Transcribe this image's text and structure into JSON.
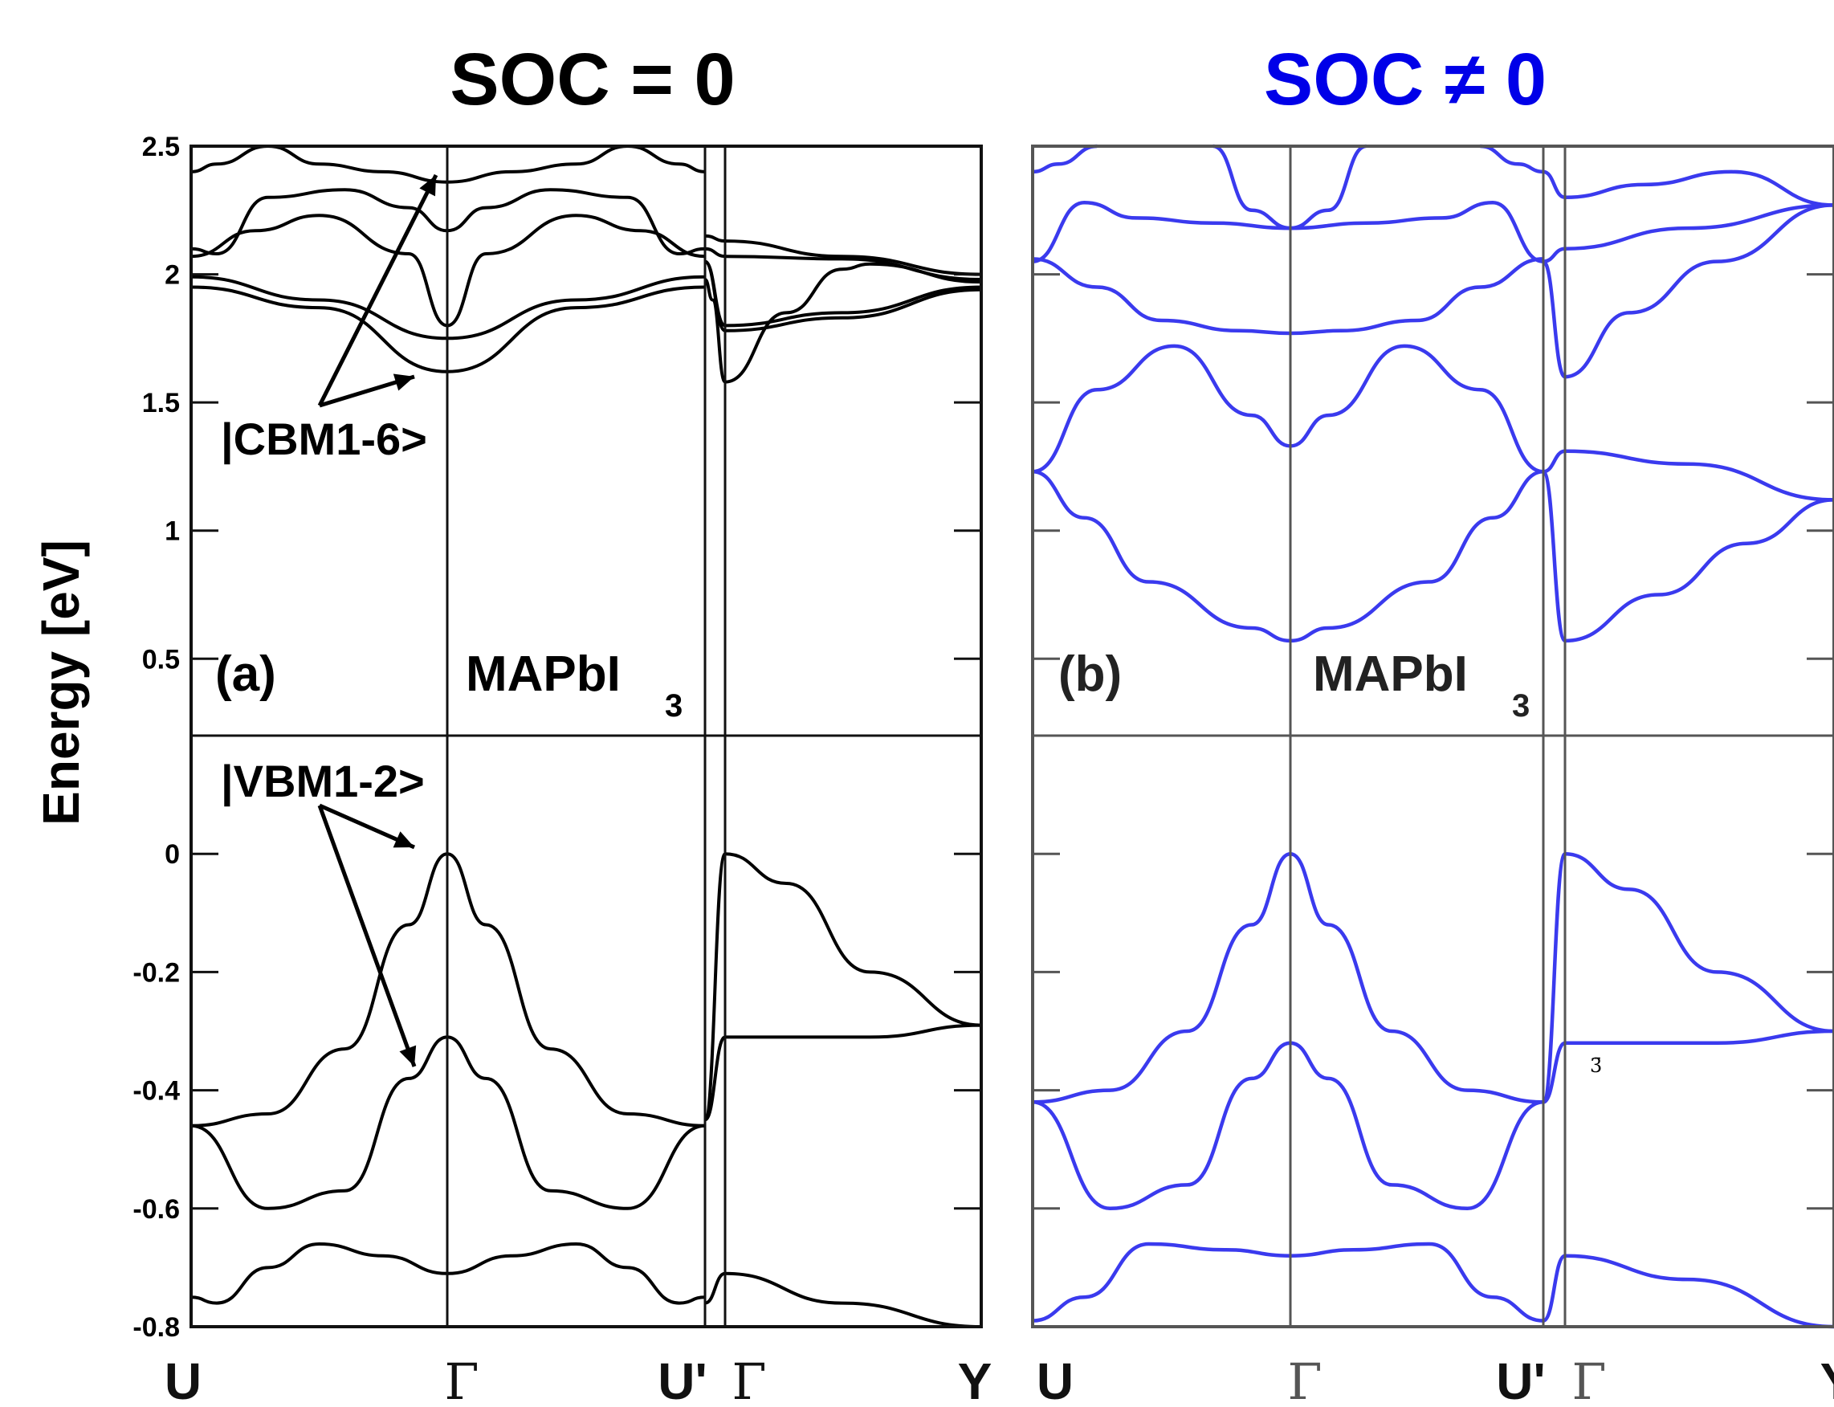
{
  "chart_data": [
    {
      "type": "line",
      "panel_label": "(a)",
      "title": "SOC = 0",
      "title_color": "#000000",
      "compound": "MAPbI",
      "compound_subscript": "3",
      "ylabel": "Energy [eV]",
      "line_color": "#000000",
      "k_points": [
        "U",
        "Γ",
        "U'",
        "Γ",
        "Y"
      ],
      "annotations": [
        "|CBM1-6>",
        "|VBM1-2>"
      ],
      "upper_ylim": [
        0.2,
        2.5
      ],
      "lower_ylim": [
        -0.8,
        0.2
      ],
      "upper_ticks": [
        "2.5",
        "2",
        "1.5",
        "1",
        "0.5"
      ],
      "lower_ticks": [
        "0",
        "-0.2",
        "-0.4",
        "-0.6",
        "-0.8"
      ],
      "bands": [
        {
          "name": "",
          "x": [
            0,
            0.5,
            1,
            1.5,
            2
          ],
          "y": [
            1.95,
            1.87,
            1.62,
            1.87,
            1.95
          ]
        },
        {
          "name": "",
          "x": [
            0,
            0.5,
            1,
            1.5,
            2
          ],
          "y": [
            1.99,
            1.9,
            1.75,
            1.9,
            1.99
          ]
        },
        {
          "name": "",
          "x": [
            0,
            0.25,
            0.5,
            0.85,
            1,
            1.15,
            1.5,
            1.75,
            2
          ],
          "y": [
            2.07,
            2.17,
            2.23,
            2.08,
            1.8,
            2.08,
            2.23,
            2.17,
            2.07
          ]
        },
        {
          "name": "",
          "x": [
            0,
            0.1,
            0.3,
            0.6,
            0.85,
            1,
            1.15,
            1.4,
            1.7,
            1.9,
            2
          ],
          "y": [
            2.1,
            2.08,
            2.3,
            2.33,
            2.26,
            2.17,
            2.26,
            2.33,
            2.3,
            2.08,
            2.1
          ]
        },
        {
          "name": "",
          "x": [
            0,
            0.1,
            0.3,
            0.5,
            0.75,
            1,
            1.25,
            1.5,
            1.7,
            1.9,
            2
          ],
          "y": [
            2.4,
            2.43,
            2.5,
            2.43,
            2.4,
            2.36,
            2.4,
            2.43,
            2.5,
            2.43,
            2.4
          ]
        },
        {
          "name": "",
          "x": [
            2,
            2.03,
            2.08,
            2.3,
            2.5,
            2.6,
            3
          ],
          "y": [
            1.98,
            1.9,
            1.58,
            1.85,
            2.02,
            2.04,
            1.97
          ]
        },
        {
          "name": "",
          "x": [
            2,
            2.08,
            2.5,
            3
          ],
          "y": [
            2.05,
            1.8,
            1.85,
            1.95
          ]
        },
        {
          "name": "",
          "x": [
            2,
            2.08,
            2.5,
            3
          ],
          "y": [
            2.05,
            1.78,
            1.83,
            1.94
          ]
        },
        {
          "name": "",
          "x": [
            2,
            2.08,
            2.5,
            3
          ],
          "y": [
            2.1,
            2.07,
            2.06,
            1.98
          ]
        },
        {
          "name": "",
          "x": [
            2,
            2.08,
            2.5,
            3
          ],
          "y": [
            2.15,
            2.13,
            2.07,
            2.0
          ]
        },
        {
          "name": "",
          "x": [
            0,
            0.3,
            0.6,
            0.85,
            1,
            1.15,
            1.4,
            1.7,
            2
          ],
          "y": [
            -0.46,
            -0.44,
            -0.33,
            -0.12,
            0,
            -0.12,
            -0.33,
            -0.44,
            -0.46
          ]
        },
        {
          "name": "",
          "x": [
            0,
            0.3,
            0.6,
            0.85,
            1,
            1.15,
            1.4,
            1.7,
            2
          ],
          "y": [
            -0.46,
            -0.6,
            -0.57,
            -0.38,
            -0.31,
            -0.38,
            -0.57,
            -0.6,
            -0.46
          ]
        },
        {
          "name": "",
          "x": [
            0,
            0.1,
            0.3,
            0.5,
            0.75,
            1,
            1.25,
            1.5,
            1.7,
            1.9,
            2
          ],
          "y": [
            -0.75,
            -0.76,
            -0.7,
            -0.66,
            -0.68,
            -0.71,
            -0.68,
            -0.66,
            -0.7,
            -0.76,
            -0.75
          ]
        },
        {
          "name": "",
          "x": [
            2,
            2.08,
            2.3,
            2.6,
            3
          ],
          "y": [
            -0.45,
            0,
            -0.05,
            -0.2,
            -0.29
          ]
        },
        {
          "name": "",
          "x": [
            2,
            2.08,
            2.6,
            3
          ],
          "y": [
            -0.45,
            -0.31,
            -0.31,
            -0.29
          ]
        },
        {
          "name": "",
          "x": [
            2,
            2.08,
            2.5,
            3
          ],
          "y": [
            -0.76,
            -0.71,
            -0.76,
            -0.8
          ]
        }
      ]
    },
    {
      "type": "line",
      "panel_label": "(b)",
      "title": "SOC ≠ 0",
      "title_color": "#0000e8",
      "compound": "MAPbI",
      "compound_subscript": "3",
      "line_color": "#3a3aee",
      "k_points": [
        "U",
        "Γ",
        "U'",
        "Γ",
        "Y"
      ],
      "upper_ylim": [
        0.2,
        2.5
      ],
      "lower_ylim": [
        -0.8,
        0.2
      ],
      "stray_mark": "3̄",
      "bands": [
        {
          "name": "",
          "x": [
            0,
            0.2,
            0.45,
            0.85,
            1,
            1.15,
            1.55,
            1.8,
            2
          ],
          "y": [
            1.23,
            1.05,
            0.8,
            0.62,
            0.57,
            0.62,
            0.8,
            1.05,
            1.23
          ]
        },
        {
          "name": "",
          "x": [
            0,
            0.25,
            0.55,
            0.85,
            1,
            1.15,
            1.45,
            1.75,
            2
          ],
          "y": [
            1.23,
            1.55,
            1.72,
            1.45,
            1.33,
            1.45,
            1.72,
            1.55,
            1.23
          ]
        },
        {
          "name": "",
          "x": [
            0,
            0.25,
            0.5,
            0.8,
            1,
            1.2,
            1.5,
            1.75,
            2
          ],
          "y": [
            2.06,
            1.95,
            1.82,
            1.78,
            1.77,
            1.78,
            1.82,
            1.95,
            2.06
          ]
        },
        {
          "name": "",
          "x": [
            0,
            0.2,
            0.4,
            0.7,
            1,
            1.3,
            1.6,
            1.8,
            2
          ],
          "y": [
            2.05,
            2.28,
            2.22,
            2.2,
            2.18,
            2.2,
            2.22,
            2.28,
            2.05
          ]
        },
        {
          "name": "",
          "x": [
            0,
            0.1,
            0.25
          ],
          "y": [
            2.4,
            2.43,
            2.5
          ]
        },
        {
          "name": "",
          "x": [
            1.75,
            1.9,
            2
          ],
          "y": [
            2.5,
            2.43,
            2.4
          ]
        },
        {
          "name": "",
          "x": [
            0.7,
            0.85,
            1,
            1.15,
            1.3
          ],
          "y": [
            2.5,
            2.25,
            2.18,
            2.25,
            2.5
          ]
        },
        {
          "name": "",
          "x": [
            2,
            2.08,
            2.5,
            3
          ],
          "y": [
            1.23,
            1.31,
            1.26,
            1.12
          ]
        },
        {
          "name": "",
          "x": [
            2,
            2.08,
            2.4,
            2.7,
            3
          ],
          "y": [
            1.23,
            0.57,
            0.75,
            0.95,
            1.12
          ]
        },
        {
          "name": "",
          "x": [
            2,
            2.08,
            2.3,
            2.6,
            3
          ],
          "y": [
            2.05,
            1.6,
            1.85,
            2.05,
            2.27
          ]
        },
        {
          "name": "",
          "x": [
            2,
            2.08,
            2.5,
            3
          ],
          "y": [
            2.05,
            2.1,
            2.18,
            2.27
          ]
        },
        {
          "name": "",
          "x": [
            2,
            2.08,
            2.35,
            2.65,
            3
          ],
          "y": [
            2.4,
            2.3,
            2.35,
            2.4,
            2.27
          ]
        },
        {
          "name": "",
          "x": [
            0,
            0.3,
            0.6,
            0.85,
            1,
            1.15,
            1.4,
            1.7,
            2
          ],
          "y": [
            -0.42,
            -0.4,
            -0.3,
            -0.12,
            0,
            -0.12,
            -0.3,
            -0.4,
            -0.42
          ]
        },
        {
          "name": "",
          "x": [
            0,
            0.3,
            0.6,
            0.85,
            1,
            1.15,
            1.4,
            1.7,
            2
          ],
          "y": [
            -0.42,
            -0.6,
            -0.56,
            -0.38,
            -0.32,
            -0.38,
            -0.56,
            -0.6,
            -0.42
          ]
        },
        {
          "name": "",
          "x": [
            0,
            0.2,
            0.45,
            0.75,
            1,
            1.25,
            1.55,
            1.8,
            2
          ],
          "y": [
            -0.79,
            -0.75,
            -0.66,
            -0.67,
            -0.68,
            -0.67,
            -0.66,
            -0.75,
            -0.79
          ]
        },
        {
          "name": "",
          "x": [
            2,
            2.08,
            2.3,
            2.6,
            3
          ],
          "y": [
            -0.42,
            0,
            -0.06,
            -0.2,
            -0.3
          ]
        },
        {
          "name": "",
          "x": [
            2,
            2.08,
            2.6,
            3
          ],
          "y": [
            -0.42,
            -0.32,
            -0.32,
            -0.3
          ]
        },
        {
          "name": "",
          "x": [
            2,
            2.08,
            2.5,
            3
          ],
          "y": [
            -0.79,
            -0.68,
            -0.72,
            -0.8
          ]
        }
      ]
    }
  ]
}
